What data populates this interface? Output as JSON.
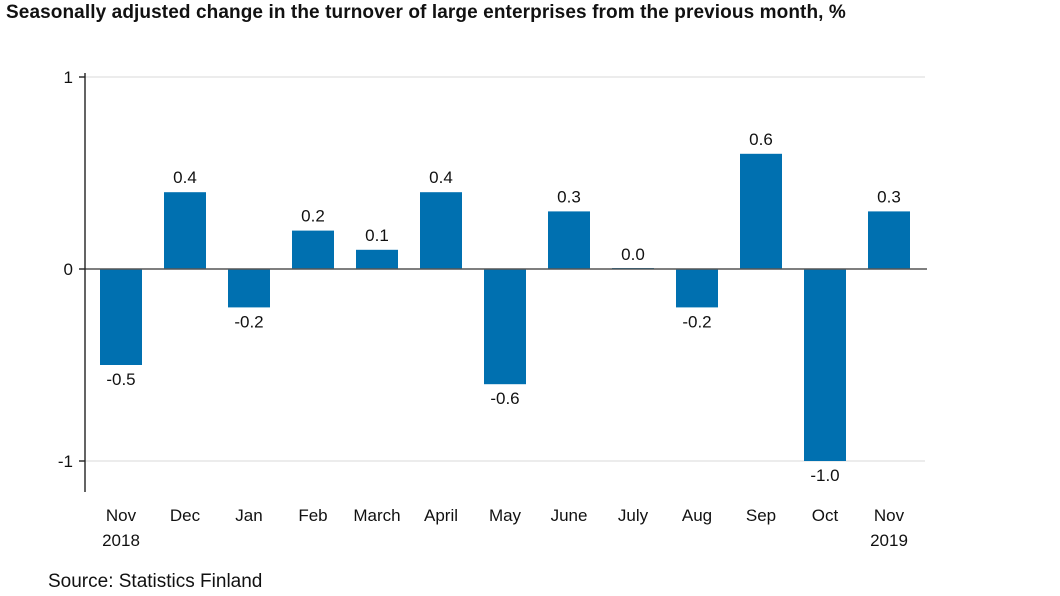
{
  "chart_data": {
    "type": "bar",
    "title": "Seasonally adjusted change in the turnover of large enterprises from the previous month, %",
    "categories": [
      [
        "Nov",
        "2018"
      ],
      [
        "Dec"
      ],
      [
        "Jan"
      ],
      [
        "Feb"
      ],
      [
        "March"
      ],
      [
        "April"
      ],
      [
        "May"
      ],
      [
        "June"
      ],
      [
        "July"
      ],
      [
        "Aug"
      ],
      [
        "Sep"
      ],
      [
        "Oct"
      ],
      [
        "Nov",
        "2019"
      ]
    ],
    "values": [
      -0.5,
      0.4,
      -0.2,
      0.2,
      0.1,
      0.4,
      -0.6,
      0.3,
      0.0,
      -0.2,
      0.6,
      -1.0,
      0.3
    ],
    "value_labels": [
      "-0.5",
      "0.4",
      "-0.2",
      "0.2",
      "0.1",
      "0.4",
      "-0.6",
      "0.3",
      "0.0",
      "-0.2",
      "0.6",
      "-1.0",
      "0.3"
    ],
    "yticks": [
      1,
      0,
      -1
    ],
    "ytick_labels": [
      "1",
      "0",
      "-1"
    ],
    "ylim": [
      -1.15,
      1.0
    ],
    "xlabel": "",
    "ylabel": "",
    "grid": true,
    "bar_color": "#0070b0",
    "source": "Source: Statistics Finland"
  }
}
